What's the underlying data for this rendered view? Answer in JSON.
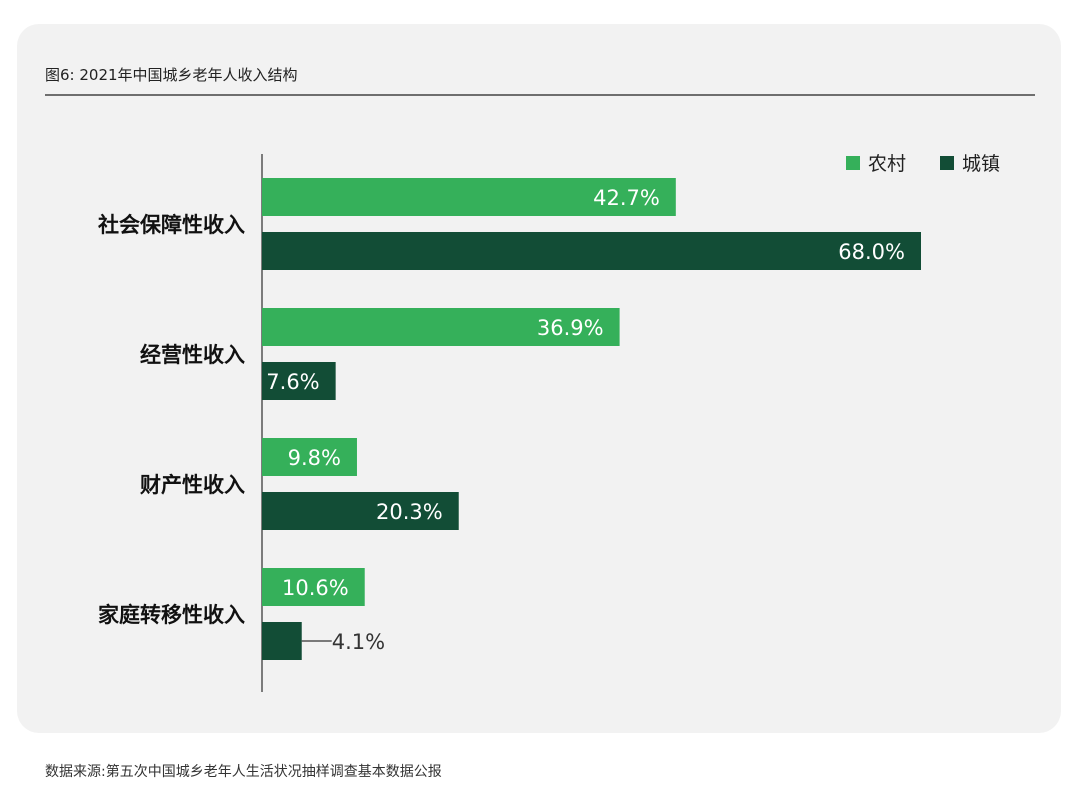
{
  "figure_title": "图6: 2021年中国城乡老年人收入结构",
  "source_note": "数据来源:第五次中国城乡老年人生活状况抽样调查基本数据公报",
  "colors": {
    "rural": "#35b05a",
    "urban": "#124d36",
    "background_card": "#f2f2f2",
    "axis": "#555555"
  },
  "chart_data": {
    "type": "bar",
    "orientation": "horizontal",
    "title": "图6: 2021年中国城乡老年人收入结构",
    "categories": [
      "社会保障性收入",
      "经营性收入",
      "财产性收入",
      "家庭转移性收入"
    ],
    "series": [
      {
        "name": "农村",
        "color": "#35b05a",
        "values": [
          42.7,
          36.9,
          9.8,
          10.6
        ],
        "labels": [
          "42.7%",
          "36.9%",
          "9.8%",
          "10.6%"
        ]
      },
      {
        "name": "城镇",
        "color": "#124d36",
        "values": [
          68.0,
          7.6,
          20.3,
          4.1
        ],
        "labels": [
          "68.0%",
          "7.6%",
          "20.3%",
          "4.1%"
        ]
      }
    ],
    "unit": "%",
    "xlim": [
      0,
      68.0
    ],
    "grid": false,
    "legend_position": "top-right"
  }
}
